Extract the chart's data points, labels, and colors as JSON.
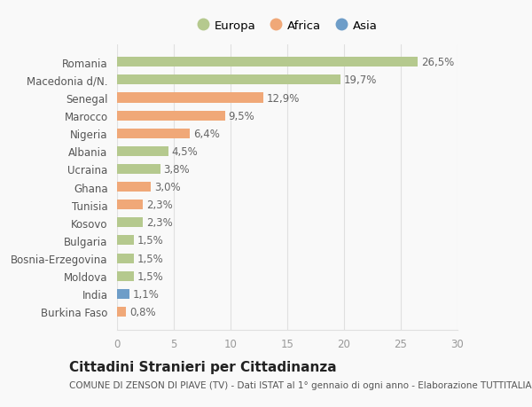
{
  "countries": [
    "Burkina Faso",
    "India",
    "Moldova",
    "Bosnia-Erzegovina",
    "Bulgaria",
    "Kosovo",
    "Tunisia",
    "Ghana",
    "Ucraina",
    "Albania",
    "Nigeria",
    "Marocco",
    "Senegal",
    "Macedonia d/N.",
    "Romania"
  ],
  "values": [
    0.8,
    1.1,
    1.5,
    1.5,
    1.5,
    2.3,
    2.3,
    3.0,
    3.8,
    4.5,
    6.4,
    9.5,
    12.9,
    19.7,
    26.5
  ],
  "labels": [
    "0,8%",
    "1,1%",
    "1,5%",
    "1,5%",
    "1,5%",
    "2,3%",
    "2,3%",
    "3,0%",
    "3,8%",
    "4,5%",
    "6,4%",
    "9,5%",
    "12,9%",
    "19,7%",
    "26,5%"
  ],
  "continents": [
    "Africa",
    "Asia",
    "Europa",
    "Europa",
    "Europa",
    "Europa",
    "Africa",
    "Africa",
    "Europa",
    "Europa",
    "Africa",
    "Africa",
    "Africa",
    "Europa",
    "Europa"
  ],
  "colors": {
    "Europa": "#b5c98e",
    "Africa": "#f0a878",
    "Asia": "#6e9dc8"
  },
  "title": "Cittadini Stranieri per Cittadinanza",
  "subtitle": "COMUNE DI ZENSON DI PIAVE (TV) - Dati ISTAT al 1° gennaio di ogni anno - Elaborazione TUTTITALIA.IT",
  "xlim": [
    0,
    30
  ],
  "xticks": [
    0,
    5,
    10,
    15,
    20,
    25,
    30
  ],
  "background_color": "#f9f9f9",
  "grid_color": "#e0e0e0",
  "bar_height": 0.55,
  "label_fontsize": 8.5,
  "tick_fontsize": 8.5,
  "title_fontsize": 11,
  "subtitle_fontsize": 7.5,
  "legend_fontsize": 9.5
}
